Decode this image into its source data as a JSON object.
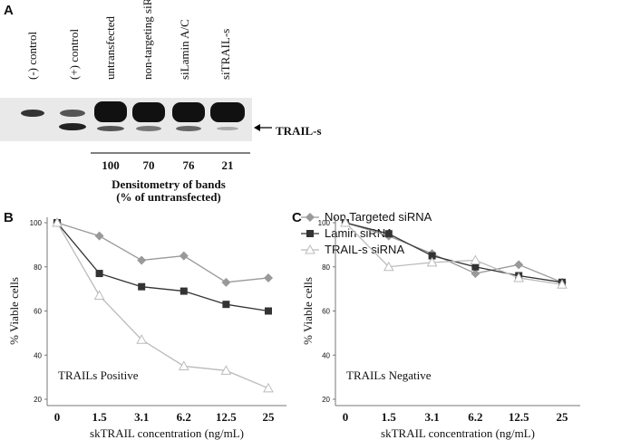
{
  "blot": {
    "panel": "A",
    "lanes": [
      "(-) control",
      "(+) control",
      "untransfected",
      "non-targeting siRNA",
      "siLamin A/C",
      "siTRAIL-s"
    ],
    "band_label": "TRAIL-s",
    "densitometry": {
      "values": [
        100,
        70,
        76,
        21
      ],
      "title": "Densitometry of bands",
      "subtitle": "(% of untransfected)"
    }
  },
  "chart_data": [
    {
      "type": "line",
      "panel": "B",
      "annotation": "TRAILs Positive",
      "x_label": "skTRAIL concentration (ng/mL)",
      "y_label": "% Viable cells",
      "categories": [
        "0",
        "1.5",
        "3.1",
        "6.2",
        "12.5",
        "25"
      ],
      "ylim": [
        20,
        100
      ],
      "yticks": [
        20,
        40,
        60,
        80,
        100
      ],
      "legend": "top-right",
      "series": [
        {
          "name": "Non Targeted siRNA",
          "color": "#999999",
          "marker": "diamond",
          "values": [
            100,
            94,
            83,
            85,
            73,
            75
          ]
        },
        {
          "name": "Lamin siRNA",
          "color": "#333333",
          "marker": "square",
          "values": [
            100,
            77,
            71,
            69,
            63,
            60
          ]
        },
        {
          "name": "TRAIL-s siRNA",
          "color": "#bbbbbb",
          "marker": "open-triangle",
          "values": [
            100,
            67,
            47,
            35,
            33,
            25
          ]
        }
      ]
    },
    {
      "type": "line",
      "panel": "C",
      "annotation": "TRAILs Negative",
      "x_label": "skTRAIL concentration (ng/mL)",
      "y_label": "% Viable cells",
      "categories": [
        "0",
        "1.5",
        "3.1",
        "6.2",
        "12.5",
        "25"
      ],
      "ylim": [
        20,
        100
      ],
      "yticks": [
        20,
        40,
        60,
        80,
        100
      ],
      "series": [
        {
          "color": "#999999",
          "marker": "diamond",
          "values": [
            100,
            94,
            86,
            77,
            81,
            73
          ]
        },
        {
          "color": "#333333",
          "marker": "square",
          "values": [
            100,
            95,
            85,
            80,
            76,
            73
          ]
        },
        {
          "color": "#bbbbbb",
          "marker": "open-triangle",
          "values": [
            100,
            80,
            82,
            83,
            75,
            72
          ]
        }
      ]
    }
  ]
}
